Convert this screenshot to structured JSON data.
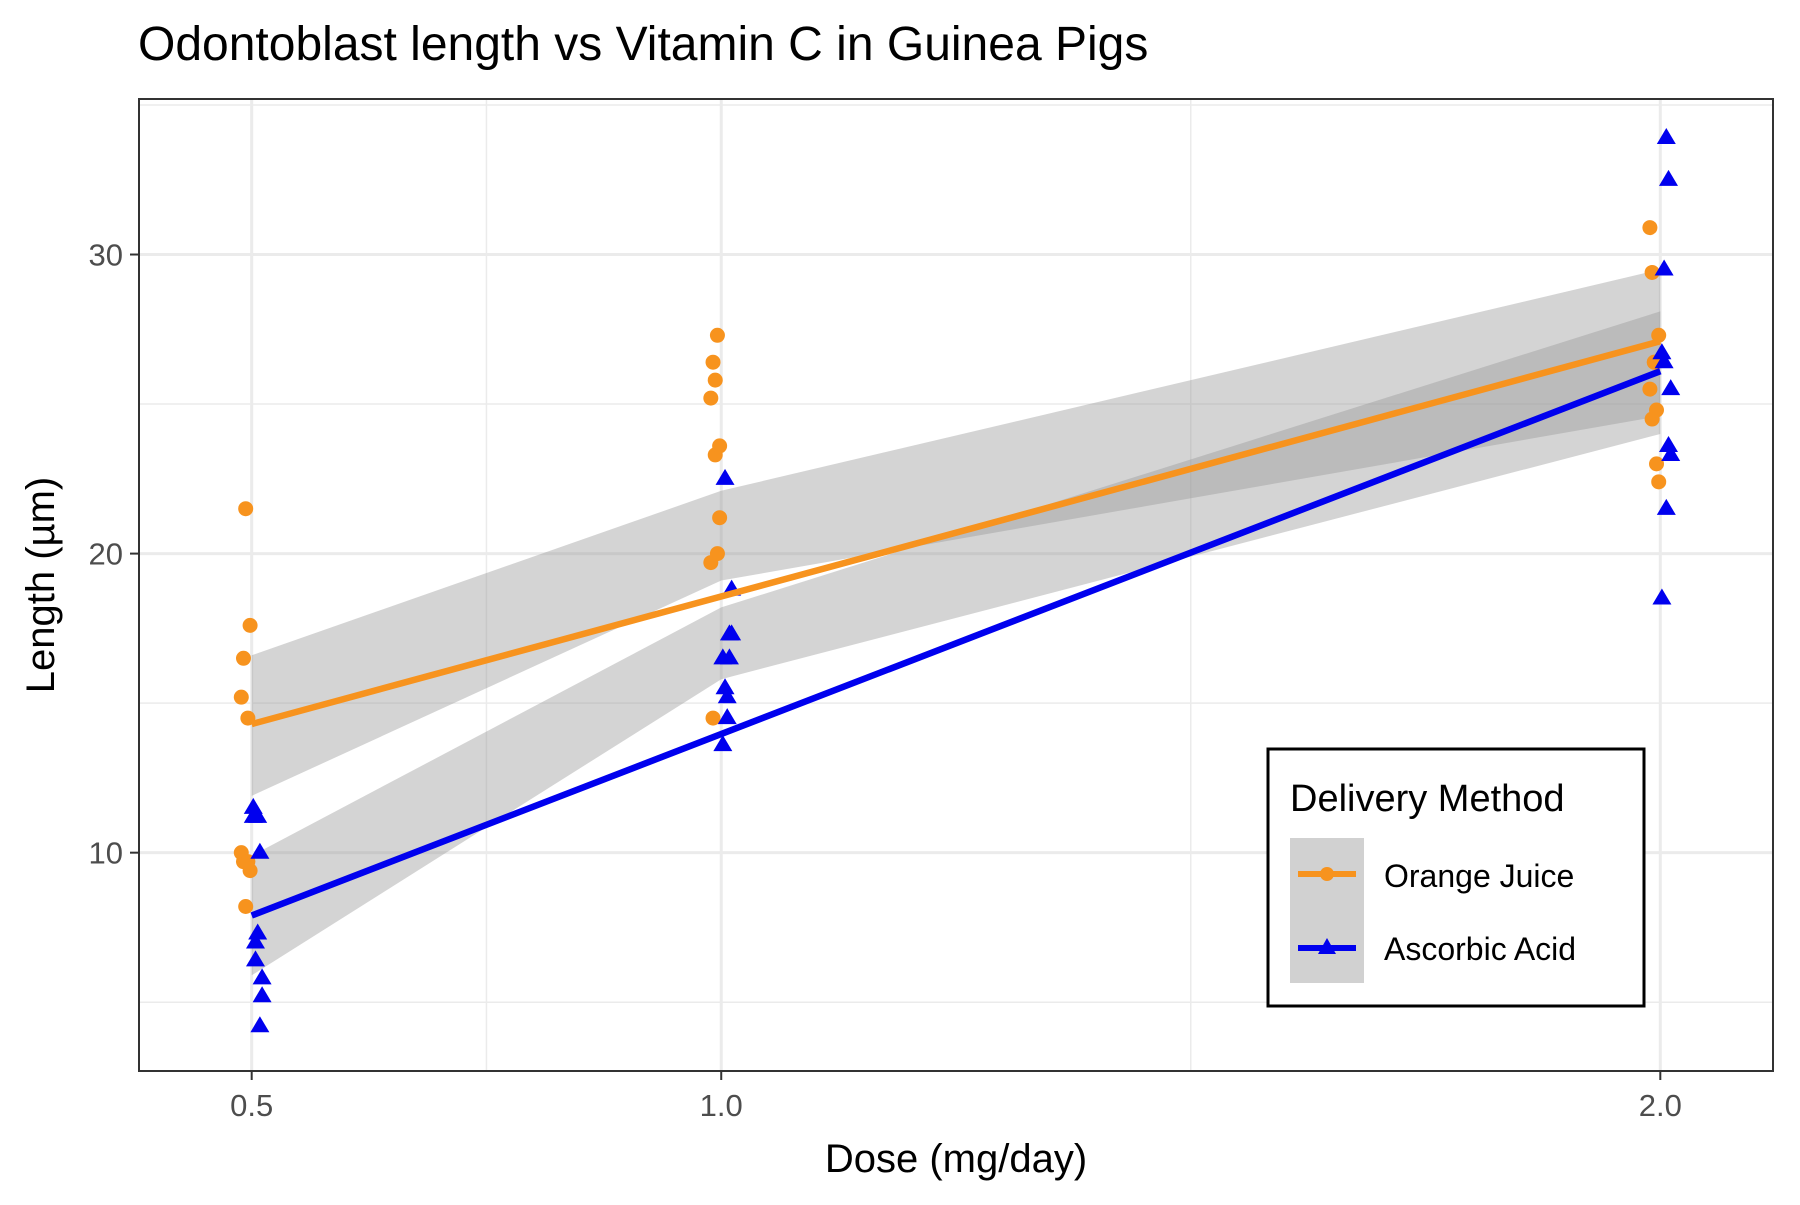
{
  "chart_data": {
    "type": "scatter",
    "title": "Odontoblast length vs Vitamin C in Guinea Pigs",
    "xlabel": "Dose (mg/day)",
    "ylabel": "Length (µm)",
    "x_ticks": [
      "0.5",
      "1.0",
      "2.0"
    ],
    "x_tick_values": [
      0.5,
      1.0,
      2.0
    ],
    "y_ticks": [
      10,
      20,
      30
    ],
    "xlim": [
      0.38,
      2.12
    ],
    "ylim": [
      2.7,
      35.2
    ],
    "grid": true,
    "legend": {
      "title": "Delivery Method",
      "position": "bottom-right",
      "entries": [
        "Orange Juice",
        "Ascorbic Acid"
      ]
    },
    "series": [
      {
        "name": "Orange Juice",
        "color": "#F7931E",
        "marker": "circle",
        "points": [
          [
            0.5,
            15.2
          ],
          [
            0.5,
            21.5
          ],
          [
            0.5,
            17.6
          ],
          [
            0.5,
            9.7
          ],
          [
            0.5,
            14.5
          ],
          [
            0.5,
            10.0
          ],
          [
            0.5,
            8.2
          ],
          [
            0.5,
            9.4
          ],
          [
            0.5,
            16.5
          ],
          [
            0.5,
            9.7
          ],
          [
            1.0,
            19.7
          ],
          [
            1.0,
            23.3
          ],
          [
            1.0,
            23.6
          ],
          [
            1.0,
            26.4
          ],
          [
            1.0,
            20.0
          ],
          [
            1.0,
            25.2
          ],
          [
            1.0,
            25.8
          ],
          [
            1.0,
            21.2
          ],
          [
            1.0,
            14.5
          ],
          [
            1.0,
            27.3
          ],
          [
            2.0,
            25.5
          ],
          [
            2.0,
            26.4
          ],
          [
            2.0,
            22.4
          ],
          [
            2.0,
            24.5
          ],
          [
            2.0,
            24.8
          ],
          [
            2.0,
            30.9
          ],
          [
            2.0,
            26.4
          ],
          [
            2.0,
            27.3
          ],
          [
            2.0,
            29.4
          ],
          [
            2.0,
            23.0
          ]
        ],
        "fit": {
          "x": [
            0.5,
            2.0
          ],
          "y": [
            14.3,
            27.1
          ]
        },
        "ci": {
          "x": [
            0.5,
            1.0,
            2.0
          ],
          "lower": [
            11.9,
            19.1,
            24.6
          ],
          "upper": [
            16.6,
            22.1,
            29.5
          ]
        }
      },
      {
        "name": "Ascorbic Acid",
        "color": "#0000EE",
        "marker": "triangle",
        "points": [
          [
            0.5,
            4.2
          ],
          [
            0.5,
            11.5
          ],
          [
            0.5,
            7.3
          ],
          [
            0.5,
            5.8
          ],
          [
            0.5,
            6.4
          ],
          [
            0.5,
            10.0
          ],
          [
            0.5,
            11.2
          ],
          [
            0.5,
            11.2
          ],
          [
            0.5,
            5.2
          ],
          [
            0.5,
            7.0
          ],
          [
            1.0,
            16.5
          ],
          [
            1.0,
            16.5
          ],
          [
            1.0,
            15.2
          ],
          [
            1.0,
            17.3
          ],
          [
            1.0,
            22.5
          ],
          [
            1.0,
            17.3
          ],
          [
            1.0,
            13.6
          ],
          [
            1.0,
            14.5
          ],
          [
            1.0,
            18.8
          ],
          [
            1.0,
            15.5
          ],
          [
            2.0,
            23.6
          ],
          [
            2.0,
            18.5
          ],
          [
            2.0,
            33.9
          ],
          [
            2.0,
            25.5
          ],
          [
            2.0,
            26.4
          ],
          [
            2.0,
            32.5
          ],
          [
            2.0,
            26.7
          ],
          [
            2.0,
            21.5
          ],
          [
            2.0,
            23.3
          ],
          [
            2.0,
            29.5
          ]
        ],
        "fit": {
          "x": [
            0.5,
            2.0
          ],
          "y": [
            7.9,
            26.1
          ]
        },
        "ci": {
          "x": [
            0.5,
            1.0,
            2.0
          ],
          "lower": [
            5.9,
            15.8,
            24.0
          ],
          "upper": [
            9.9,
            18.2,
            28.1
          ]
        }
      }
    ]
  }
}
